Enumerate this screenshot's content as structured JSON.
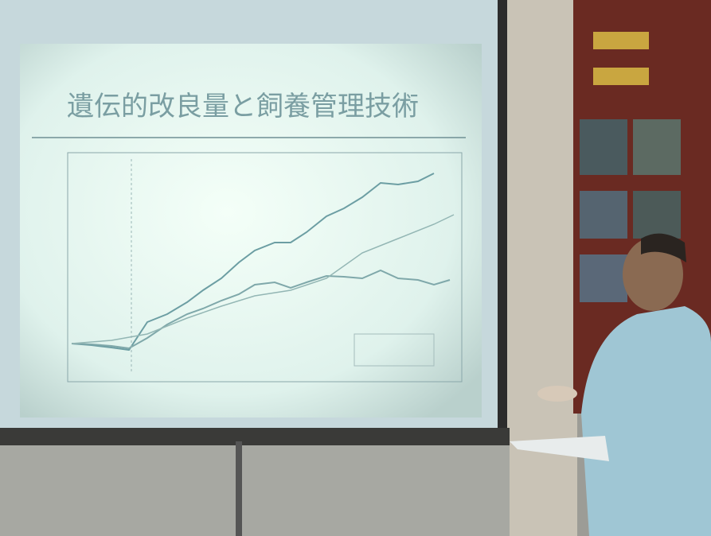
{
  "slide": {
    "title": "遺伝的改良量と飼養管理技術"
  }
}
